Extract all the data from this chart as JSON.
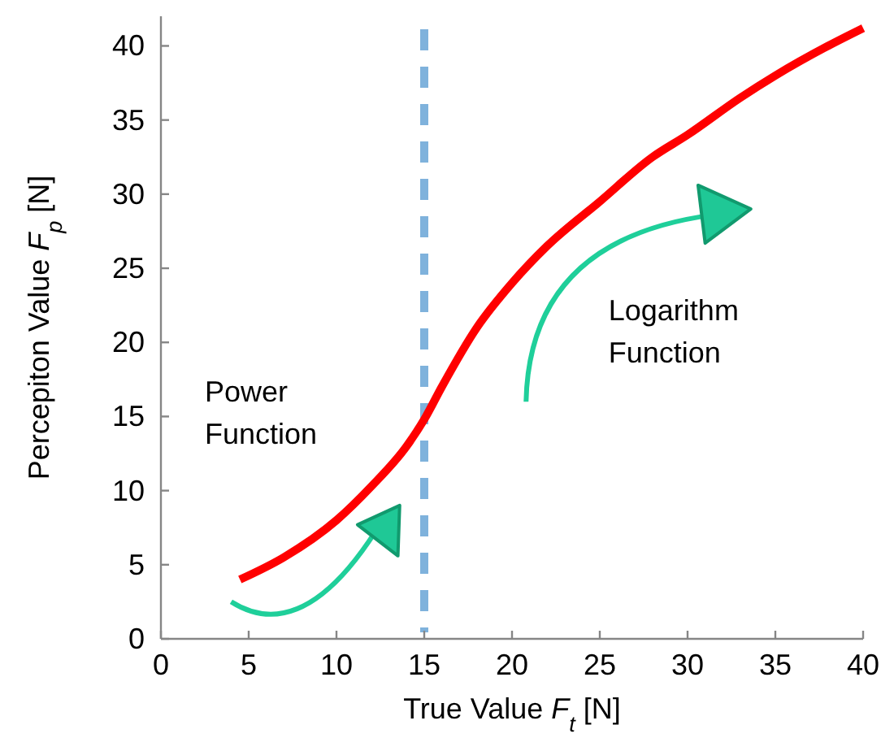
{
  "chart_data": {
    "type": "line",
    "xlabel": "True Value F$_{t}$ [N]",
    "ylabel": "Percepiton Value F$_{p}$ [N]",
    "x": [
      4.5,
      7,
      10,
      12,
      14,
      15,
      16,
      18,
      20,
      22,
      25,
      28,
      30,
      33,
      35,
      38,
      40
    ],
    "series": [
      {
        "color": "#ff0000",
        "values": [
          4,
          5.5,
          8,
          10.3,
          13,
          14.8,
          17,
          21,
          24,
          26.5,
          29.5,
          32.5,
          34,
          36.5,
          38,
          40,
          41.2
        ]
      }
    ],
    "xlim": [
      0,
      40
    ],
    "xticks": [
      0,
      5,
      10,
      15,
      20,
      25,
      30,
      35,
      40
    ],
    "ylim": [
      0,
      42
    ],
    "yticks": [
      0,
      5,
      10,
      15,
      20,
      25,
      30,
      35,
      40
    ],
    "ref_lines": [
      {
        "axis": "x",
        "value": 15,
        "color": "#7fb2dc",
        "line_style": "dashed"
      }
    ],
    "annotations": [
      "Power\nFunction",
      "Logarithm\nFunction"
    ],
    "grid": false,
    "line_style": "solid"
  }
}
